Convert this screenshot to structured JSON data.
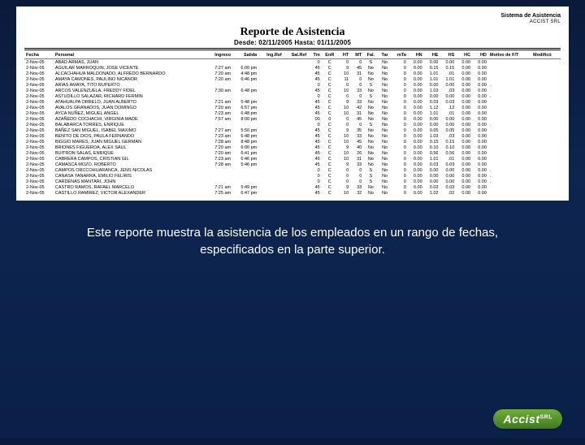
{
  "header": {
    "system": "Sistema de Asistencia",
    "company": "ACCIST SRL",
    "title": "Reporte de Asistencia",
    "range": "Desde: 02/11/2005  Hasta: 01/11/2005"
  },
  "columns": [
    "Fecha",
    "Personal",
    "Ingreso",
    "Salida",
    "Ing.Ref",
    "Sal.Ref",
    "Tm",
    "EnR",
    "HT",
    "MT",
    "Fal.",
    "Tar",
    "mTa",
    "HN",
    "HE",
    "HS",
    "HC",
    "HD",
    "Motivo de F/T",
    "Modificó"
  ],
  "rows": [
    [
      "2-Nov-05",
      "ABAD ARMAS, JUAN",
      "",
      "",
      "",
      "",
      "0",
      "C",
      "0",
      "0",
      "S",
      "No",
      "0",
      "0.00",
      "0.00",
      "0.00",
      "0.00",
      "0.00",
      "",
      ""
    ],
    [
      "2-Nov-05",
      "AGUILAR MARROQUIN, JOSE VICENTE",
      "7:27 am",
      "6:00 pm",
      "",
      "",
      "45",
      "C",
      "9",
      "45",
      "No",
      "No",
      "0",
      "0.00",
      "0.15",
      "0.15",
      "0.00",
      "0.00",
      "",
      ""
    ],
    [
      "2-Nov-05",
      "ALCACHAHUA MALDONADO, ALFREDO BERNARDO",
      "7:20 am",
      "4:48 pm",
      "",
      "",
      "45",
      "C",
      "10",
      "31",
      "No",
      "No",
      "0",
      "0.00",
      "1.01",
      ".01",
      "0.00",
      "0.00",
      "",
      ""
    ],
    [
      "2-Nov-05",
      "AMAYA CAMONES, PAULINO NICANOR",
      "7:20 am",
      "6:46 pm",
      "",
      "",
      "45",
      "C",
      "11",
      "0",
      "No",
      "No",
      "0",
      "0.00",
      "1.01",
      "1.01",
      "0.00",
      "0.00",
      "",
      ""
    ],
    [
      "2-Nov-05",
      "ARIAS AMAYA, TITO RUPERTO",
      "",
      "",
      "",
      "",
      "0",
      "C",
      "0",
      "0",
      "S",
      "No",
      "0",
      "0.00",
      "0.00",
      "0.00",
      "0.00",
      "0.00",
      ".",
      ""
    ],
    [
      "2-Nov-05",
      "ARCOS VALENZUELA, FREDDY FIDEL",
      "7:30 am",
      "6:48 pm",
      "",
      "",
      "45",
      "C",
      "10",
      "33",
      "No",
      "No",
      "0",
      "0.00",
      "1.03",
      ".03",
      "0.00",
      "0.00",
      "",
      ""
    ],
    [
      "2-Nov-05",
      "ASTUDILLO SALAZAR, RICHARD FERMIN",
      "",
      "",
      "",
      "",
      "0",
      "C",
      "0",
      "0",
      "S",
      "No",
      "0",
      "0.00",
      "0.00",
      "0.00",
      "0.00",
      "0.00",
      ".",
      ""
    ],
    [
      "2-Nov-05",
      "ATAHUALPA ORRELO, JUAN ALBERTO",
      "7:21 am",
      "5:48 pm",
      "",
      "",
      "45",
      "C",
      "9",
      "33",
      "No",
      "No",
      "0",
      "0.00",
      "0.03",
      "0.03",
      "0.00",
      "0.00",
      "",
      ""
    ],
    [
      "2-Nov-05",
      "AVALOS GRANADOS, JUAN DOMINGO",
      "7:20 am",
      "6:57 pm",
      "",
      "",
      "45",
      "C",
      "10",
      "42",
      "No",
      "No",
      "0",
      "0.00",
      "1.12",
      ".12",
      "0.00",
      "0.00",
      "",
      ""
    ],
    [
      "2-Nov-05",
      "AYCA NUÑEZ, MIGUEL ANGEL",
      "7:23 am",
      "6:48 pm",
      "",
      "",
      "45",
      "C",
      "10",
      "31",
      "No",
      "No",
      "0",
      "0.00",
      "1.01",
      ".01",
      "0.00",
      "0.00",
      "",
      ""
    ],
    [
      "2-Nov-05",
      "AZAÑEDO COCHACHI, VIRGINIA MADE",
      "7:57 am",
      "8:00 pm",
      "",
      "",
      "00",
      "0",
      "0",
      "45",
      "No",
      "No",
      "0",
      "0.00",
      "0.00",
      "0.00",
      "0.00",
      "0.00",
      "",
      ""
    ],
    [
      "2-Nov-05",
      "BALABARCA TORRES, ENRIQUE",
      "",
      "",
      "",
      "",
      "0",
      "C",
      "0",
      "0",
      "S",
      "No",
      "0",
      "0.00",
      "0.00",
      "0.00",
      "0.00",
      "0.00",
      ".",
      ""
    ],
    [
      "2-Nov-05",
      "BAÑEZ SAN MIGUEL, ISABEL MAXIMO",
      "7:27 am",
      "5:50 pm",
      "",
      "",
      "45",
      "C",
      "9",
      "35",
      "No",
      "No",
      "0",
      "0.00",
      "0.05",
      "0.05",
      "0.00",
      "0.00",
      "",
      ""
    ],
    [
      "2-Nov-05",
      "BENITO DE DIOS, PAULA FERNANDO",
      "7:23 am",
      "6:48 pm",
      "",
      "",
      "45",
      "C",
      "10",
      "33",
      "No",
      "No",
      "0",
      "0.00",
      "1.03",
      ".03",
      "0.00",
      "0.00",
      "",
      ""
    ],
    [
      "2-Nov-05",
      "BIGGIO MARES, JUAN MIGUEL GERMAN",
      "7:28 am",
      "8:48 pm",
      "",
      "",
      "45",
      "C",
      "10",
      "45",
      "No",
      "No",
      "0",
      "0.00",
      "0.15",
      "0.15",
      "0.00",
      "0.00",
      "",
      ""
    ],
    [
      "2-Nov-05",
      "BRIONES FIGUEROA, ALEX SAUL",
      "7:20 am",
      "6:00 pm",
      "",
      "",
      "45",
      "C",
      "9",
      "40",
      "No",
      "No",
      "0",
      "0.00",
      "0.10",
      "0.10",
      "0.00",
      "0.00",
      "",
      ""
    ],
    [
      "2-Nov-05",
      "BUITRON SALAS, ENRIQUE",
      "7:20 am",
      "6:41 pm",
      "",
      "",
      "45",
      "C",
      "10",
      "26",
      "No",
      "No",
      "0",
      "0.00",
      "0.56",
      "0.56",
      "0.00",
      "0.00",
      "",
      ""
    ],
    [
      "2-Nov-05",
      "CABRERA CAMPOS, CRISTIAN GIL",
      "7:23 am",
      "6:46 pm",
      "",
      "",
      "45",
      "C",
      "10",
      "31",
      "No",
      "No",
      "0",
      "0.00",
      "1.01",
      ".01",
      "0.00",
      "0.00",
      "",
      ""
    ],
    [
      "2-Nov-05",
      "CAMASCA MOZO, ROBERTO",
      "7:28 am",
      "5:46 pm",
      "",
      "",
      "45",
      "C",
      "9",
      "33",
      "No",
      "No",
      "0",
      "0.00",
      "0.03",
      "0.03",
      "0.00",
      "0.00",
      "",
      ""
    ],
    [
      "2-Nov-05",
      "CAMPOS ORCCOHUARANCA, JENS NICOLAS",
      "",
      "",
      "",
      "",
      "0",
      "C",
      "0",
      "0",
      "S",
      "No",
      "0",
      "0.00",
      "0.00",
      "0.00",
      "0.00",
      "0.00",
      ".",
      ""
    ],
    [
      "2-Nov-05",
      "CANASA YANARRA, EMILIO FELIRIS",
      "",
      "",
      "",
      "",
      "0",
      "C",
      "0",
      "0",
      "S",
      "No",
      "0",
      "0.00",
      "0.00",
      "0.00",
      "0.00",
      "0.00",
      ".",
      ""
    ],
    [
      "2-Nov-05",
      "CARDENAS MANTARI, JOHN",
      "",
      "",
      "",
      "",
      "0",
      "C",
      "0",
      "0",
      "S",
      "No",
      "0",
      "0.00",
      "0.00",
      "0.00",
      "0.00",
      "0.00",
      ".",
      ""
    ],
    [
      "2-Nov-05",
      "CASTRO RAMOS, RAFAEL MARCELO",
      "7:21 am",
      "5:49 pm",
      "",
      "",
      "45",
      "C",
      "9",
      "33",
      "No",
      "No",
      "0",
      "0.00",
      "0.03",
      "0.03",
      "0.00",
      "0.00",
      "",
      ""
    ],
    [
      "2-Nov-05",
      "CASTILLO RAMIREZ, VICTOR ALEXANDER",
      "7:25 am",
      "6:47 pm",
      "",
      "",
      "45",
      "C",
      "10",
      "32",
      "No",
      "No",
      "0",
      "0.00",
      "1.02",
      ".02",
      "0.00",
      "0.00",
      "",
      ""
    ]
  ],
  "col_align": [
    "l",
    "l",
    "r",
    "r",
    "r",
    "r",
    "r",
    "c",
    "r",
    "r",
    "c",
    "c",
    "r",
    "r",
    "r",
    "r",
    "r",
    "r",
    "l",
    "l"
  ],
  "caption": "Este reporte muestra la asistencia de  los empleados en un rango de fechas, especificados en la parte superior.",
  "logo": "Accist",
  "colors": {
    "bg_top": "#0a1a3a",
    "bg_bot": "#0a2048",
    "paper": "#ffffff",
    "logo_grad_a": "#6fae3b",
    "logo_grad_b": "#3e7a1e"
  }
}
